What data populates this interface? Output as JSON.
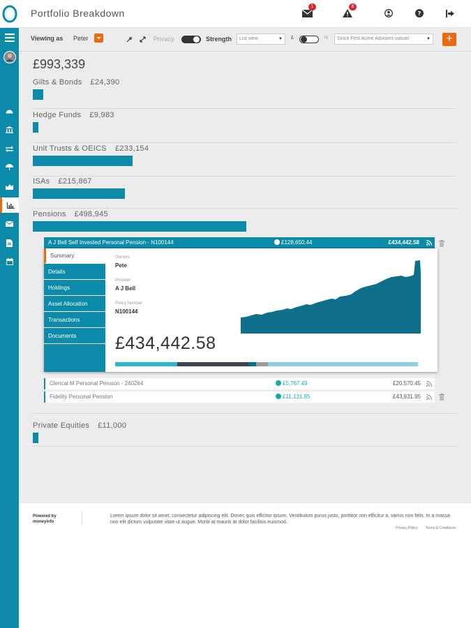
{
  "header": {
    "title": "Portfolio Breakdown",
    "messages_badge": "1",
    "alerts_badge": "8",
    "icons": [
      "envelope-icon",
      "alert-icon",
      "user-icon",
      "help-icon",
      "logout-icon"
    ]
  },
  "sidebar": {
    "items": [
      "menu-icon",
      "avatar",
      "dashboard-icon",
      "bank-icon",
      "transfer-icon",
      "umbrella-icon",
      "portfolio-icon",
      "chart-icon",
      "mail-icon",
      "document-icon",
      "calendar-icon"
    ],
    "active": "chart-icon"
  },
  "toolbar": {
    "viewing_as_label": "Viewing as",
    "viewing_as_value": "Peter",
    "privacy_label": "Privacy",
    "strength_label": "Strength",
    "view_select": "List view",
    "currency_symbol": "£",
    "percent_symbol": "%",
    "period_select": "Since First Acme Advisers valuati",
    "add_label": "+"
  },
  "portfolio": {
    "total": "£993,339",
    "categories": [
      {
        "name": "Gilts & Bonds",
        "amount": "£24,390",
        "share": 0.049
      },
      {
        "name": "Hedge Funds",
        "amount": "£9,983",
        "share": 0.02
      },
      {
        "name": "Unit Trusts & OEICS",
        "amount": "£233,154",
        "share": 0.467
      },
      {
        "name": "ISAs",
        "amount": "£215,867",
        "share": 0.433
      },
      {
        "name": "Pensions",
        "amount": "£498,945",
        "share": 1.0
      },
      {
        "name": "Private Equities",
        "amount": "£11,000",
        "share": 0.022
      }
    ]
  },
  "pension_detail": {
    "title": "A J Bell Self Invested Personal Pension - N100144",
    "gain": "£128,650.44",
    "value": "£434,442.58",
    "tabs": [
      "Summary",
      "Details",
      "Holdings",
      "Asset Allocation",
      "Transactions",
      "Documents"
    ],
    "owners_label": "Owners",
    "owners_value": "Pete",
    "provider_label": "Provider",
    "provider_value": "A J Bell",
    "policy_label": "Policy Number",
    "policy_value": "N100144",
    "big_value": "£434,442.58",
    "allocation": [
      {
        "share": 0.205,
        "color": "#2bb5cf"
      },
      {
        "share": 0.235,
        "color": "#3b4450"
      },
      {
        "share": 0.025,
        "color": "#0b6f8a"
      },
      {
        "share": 0.04,
        "color": "#9a9a9a"
      },
      {
        "share": 0.495,
        "color": "#8ed0e0"
      }
    ]
  },
  "other_pensions": [
    {
      "name": "Clerical M Personal Pension - 240264",
      "gain": "£5,767.49",
      "value": "£20,570.45"
    },
    {
      "name": "Fidelity Personal Pension",
      "gain": "£11,131.95",
      "value": "£43,931.95"
    }
  ],
  "footer": {
    "powered_line1": "Powered by",
    "powered_line2": "moneyinfo",
    "lorem": "Lorem ipsum dolor sit amet, consectetur adipiscing elit. Donec quis efficitur ipsum. Vestibulum purus justo, porttitor non efficitur a, varius non felis. In a massa non elit dictum vulputate vitae ut augue. Morbi at mauris at dolor facilisis euismod.",
    "privacy_link": "Privacy Policy",
    "terms_link": "Terms & Conditions"
  },
  "colors": {
    "accent": "#0b8aa9",
    "orange": "#e86b12",
    "badge": "#d9232d",
    "gain": "#17a8ad"
  }
}
